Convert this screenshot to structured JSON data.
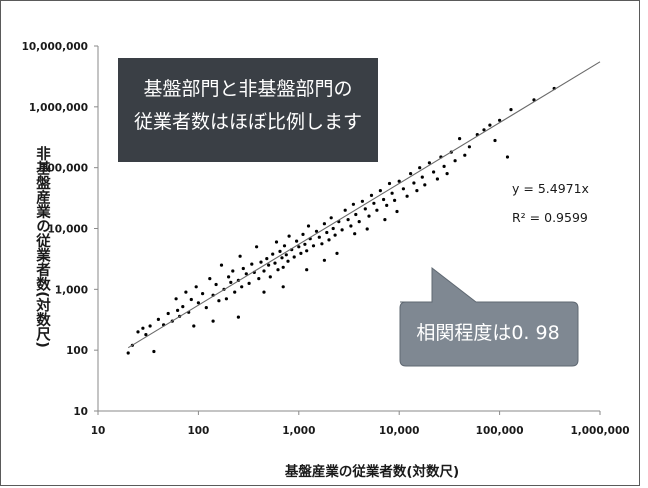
{
  "chart_data": {
    "type": "scatter",
    "xlabel": "基盤産業の従業者数(対数尺)",
    "ylabel": "非基盤産業の従業者数(対数尺)",
    "x_scale": "log",
    "y_scale": "log",
    "xlim": [
      10,
      1000000
    ],
    "ylim": [
      10,
      10000000
    ],
    "x_ticks": [
      "10",
      "100",
      "1,000",
      "10,000",
      "100,000",
      "1,000,000"
    ],
    "y_ticks": [
      "10",
      "100",
      "1,000",
      "10,000",
      "100,000",
      "1,000,000",
      "10,000,000"
    ],
    "trendline": {
      "slope": 5.4971,
      "equation": "y = 5.4971x",
      "r_squared": "R² = 0.9599"
    },
    "points": [
      [
        20,
        90
      ],
      [
        22,
        120
      ],
      [
        25,
        200
      ],
      [
        28,
        230
      ],
      [
        30,
        180
      ],
      [
        33,
        250
      ],
      [
        36,
        95
      ],
      [
        40,
        320
      ],
      [
        45,
        260
      ],
      [
        50,
        400
      ],
      [
        55,
        300
      ],
      [
        60,
        700
      ],
      [
        62,
        450
      ],
      [
        65,
        360
      ],
      [
        70,
        520
      ],
      [
        75,
        900
      ],
      [
        80,
        420
      ],
      [
        85,
        680
      ],
      [
        90,
        250
      ],
      [
        95,
        1100
      ],
      [
        100,
        600
      ],
      [
        110,
        850
      ],
      [
        120,
        500
      ],
      [
        130,
        1500
      ],
      [
        140,
        800
      ],
      [
        150,
        1200
      ],
      [
        160,
        650
      ],
      [
        170,
        2500
      ],
      [
        180,
        1000
      ],
      [
        190,
        700
      ],
      [
        200,
        1600
      ],
      [
        210,
        1300
      ],
      [
        220,
        2000
      ],
      [
        230,
        900
      ],
      [
        250,
        1400
      ],
      [
        260,
        3500
      ],
      [
        270,
        1100
      ],
      [
        280,
        2200
      ],
      [
        300,
        1800
      ],
      [
        320,
        1250
      ],
      [
        340,
        2600
      ],
      [
        360,
        1900
      ],
      [
        380,
        5000
      ],
      [
        400,
        1500
      ],
      [
        420,
        2800
      ],
      [
        450,
        2000
      ],
      [
        480,
        3200
      ],
      [
        500,
        2500
      ],
      [
        520,
        1600
      ],
      [
        550,
        3800
      ],
      [
        580,
        2700
      ],
      [
        600,
        6000
      ],
      [
        620,
        2100
      ],
      [
        650,
        4200
      ],
      [
        680,
        3300
      ],
      [
        700,
        2300
      ],
      [
        720,
        5200
      ],
      [
        750,
        3700
      ],
      [
        780,
        2900
      ],
      [
        800,
        7500
      ],
      [
        850,
        4500
      ],
      [
        900,
        3400
      ],
      [
        950,
        6200
      ],
      [
        1000,
        5000
      ],
      [
        1050,
        3900
      ],
      [
        1100,
        8000
      ],
      [
        1150,
        5500
      ],
      [
        1200,
        4300
      ],
      [
        1250,
        11000
      ],
      [
        1300,
        6800
      ],
      [
        1400,
        5200
      ],
      [
        1500,
        9000
      ],
      [
        1600,
        7200
      ],
      [
        1700,
        5600
      ],
      [
        1800,
        12000
      ],
      [
        1900,
        8600
      ],
      [
        2000,
        6500
      ],
      [
        2100,
        15000
      ],
      [
        2200,
        10000
      ],
      [
        2300,
        7800
      ],
      [
        2500,
        13000
      ],
      [
        2700,
        9500
      ],
      [
        2900,
        20000
      ],
      [
        3100,
        14000
      ],
      [
        3300,
        11000
      ],
      [
        3500,
        25000
      ],
      [
        3700,
        17000
      ],
      [
        4000,
        13000
      ],
      [
        4300,
        28000
      ],
      [
        4600,
        21000
      ],
      [
        5000,
        16000
      ],
      [
        5300,
        35000
      ],
      [
        5600,
        26000
      ],
      [
        6000,
        20000
      ],
      [
        6500,
        42000
      ],
      [
        7000,
        30000
      ],
      [
        7500,
        24000
      ],
      [
        8000,
        55000
      ],
      [
        8500,
        38000
      ],
      [
        9000,
        29000
      ],
      [
        10000,
        60000
      ],
      [
        11000,
        45000
      ],
      [
        12000,
        34000
      ],
      [
        13000,
        80000
      ],
      [
        14000,
        56000
      ],
      [
        15000,
        42000
      ],
      [
        16000,
        100000
      ],
      [
        17000,
        70000
      ],
      [
        18000,
        52000
      ],
      [
        20000,
        120000
      ],
      [
        22000,
        85000
      ],
      [
        24000,
        65000
      ],
      [
        26000,
        150000
      ],
      [
        28000,
        105000
      ],
      [
        30000,
        80000
      ],
      [
        33000,
        180000
      ],
      [
        36000,
        130000
      ],
      [
        40000,
        300000
      ],
      [
        45000,
        160000
      ],
      [
        50000,
        220000
      ],
      [
        60000,
        350000
      ],
      [
        70000,
        420000
      ],
      [
        80000,
        500000
      ],
      [
        90000,
        280000
      ],
      [
        100000,
        600000
      ],
      [
        120000,
        150000
      ],
      [
        130000,
        900000
      ],
      [
        220000,
        1300000
      ],
      [
        350000,
        2000000
      ],
      [
        1200,
        2100
      ],
      [
        2400,
        3900
      ],
      [
        3600,
        8200
      ],
      [
        4800,
        9800
      ],
      [
        7200,
        14000
      ],
      [
        9500,
        19000
      ],
      [
        450,
        900
      ],
      [
        250,
        350
      ],
      [
        140,
        300
      ],
      [
        700,
        1100
      ],
      [
        1800,
        3000
      ]
    ]
  },
  "title_box": {
    "line1": "基盤部門と非基盤部門の",
    "line2": "従業者数はほぼ比例します"
  },
  "callout": {
    "text": "相関程度は0. 98"
  },
  "colors": {
    "title_box_bg": "#3a3f45",
    "callout_bg": "#7f8892",
    "callout_border": "#5f6872",
    "point": "#000000",
    "trendline": "#6a6a6a"
  }
}
